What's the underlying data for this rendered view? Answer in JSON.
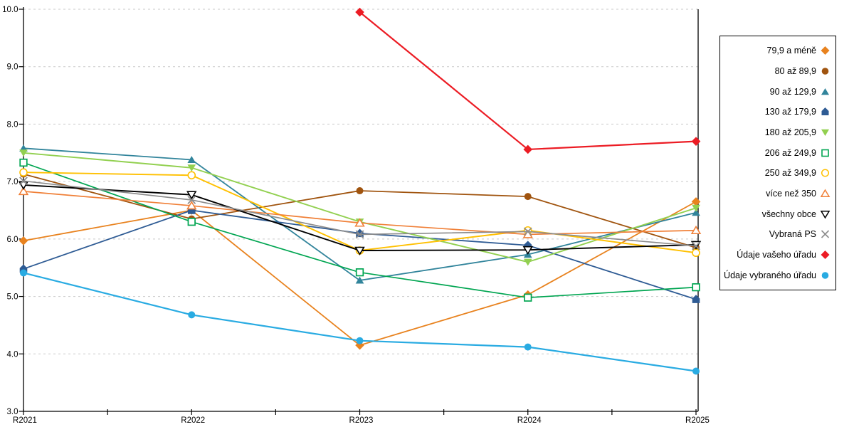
{
  "chart_data": {
    "type": "line",
    "title": "",
    "xlabel": "",
    "ylabel": "",
    "categories": [
      "R2021",
      "R2022",
      "R2023",
      "R2024",
      "R2025"
    ],
    "y_axis": {
      "min": 3.0,
      "max": 10.0,
      "step": 1.0,
      "tick_labels": [
        "10.0",
        "9.0",
        "8.0",
        "7.0",
        "6.0",
        "5.0",
        "4.0",
        "3.0"
      ]
    },
    "grid": {
      "horizontal": true,
      "vertical": false,
      "style": "dashed",
      "color": "#C9C9C9"
    },
    "legend_position": "right",
    "series": [
      {
        "name": "79,9 a méně",
        "marker": "diamond",
        "fill": "solid",
        "color": "#E8821E",
        "line_width": 1.8,
        "values": [
          5.97,
          6.5,
          4.15,
          5.03,
          6.65
        ]
      },
      {
        "name": "80 až 89,9",
        "marker": "circle",
        "fill": "solid",
        "color": "#A0540F",
        "line_width": 1.8,
        "values": [
          7.13,
          6.35,
          6.84,
          6.74,
          5.85
        ]
      },
      {
        "name": "90 až 129,9",
        "marker": "triangle-up",
        "fill": "solid",
        "color": "#31849B",
        "line_width": 1.8,
        "values": [
          7.58,
          7.38,
          5.28,
          5.73,
          6.46
        ]
      },
      {
        "name": "130 až 179,9",
        "marker": "pentagon",
        "fill": "solid",
        "color": "#2E5B94",
        "line_width": 1.8,
        "values": [
          5.48,
          6.5,
          6.1,
          5.89,
          4.95
        ]
      },
      {
        "name": "180 až 205,9",
        "marker": "triangle-down",
        "fill": "solid",
        "color": "#92D050",
        "line_width": 1.9,
        "values": [
          7.5,
          7.24,
          6.3,
          5.6,
          6.54
        ]
      },
      {
        "name": "206 až 249,9",
        "marker": "square",
        "fill": "open",
        "color": "#00A551",
        "line_width": 1.7,
        "values": [
          7.33,
          6.3,
          5.42,
          4.98,
          5.16
        ]
      },
      {
        "name": "250 až 349,9",
        "marker": "circle",
        "fill": "open",
        "color": "#FFC000",
        "line_width": 1.9,
        "values": [
          7.16,
          7.11,
          5.8,
          6.15,
          5.76
        ]
      },
      {
        "name": "více než 350",
        "marker": "triangle-up",
        "fill": "open",
        "color": "#F08038",
        "line_width": 1.7,
        "values": [
          6.83,
          6.58,
          6.28,
          6.08,
          6.15
        ]
      },
      {
        "name": "všechny obce",
        "marker": "triangle-down",
        "fill": "open",
        "color": "#000000",
        "line_width": 1.9,
        "values": [
          6.94,
          6.77,
          5.8,
          5.81,
          5.9
        ]
      },
      {
        "name": "Vybraná PS",
        "marker": "x",
        "fill": "open",
        "color": "#8C8C8C",
        "line_width": 1.7,
        "values": [
          7.01,
          6.68,
          6.08,
          6.13,
          5.88
        ]
      },
      {
        "name": "Údaje vašeho úřadu",
        "marker": "diamond",
        "fill": "solid",
        "color": "#EC1C24",
        "line_width": 2.2,
        "values": [
          null,
          null,
          9.95,
          7.56,
          7.7
        ]
      },
      {
        "name": "Údaje vybraného úřadu",
        "marker": "circle",
        "fill": "solid",
        "color": "#29ABE2",
        "line_width": 2.2,
        "values": [
          5.41,
          4.68,
          4.23,
          4.12,
          3.7
        ]
      }
    ]
  }
}
